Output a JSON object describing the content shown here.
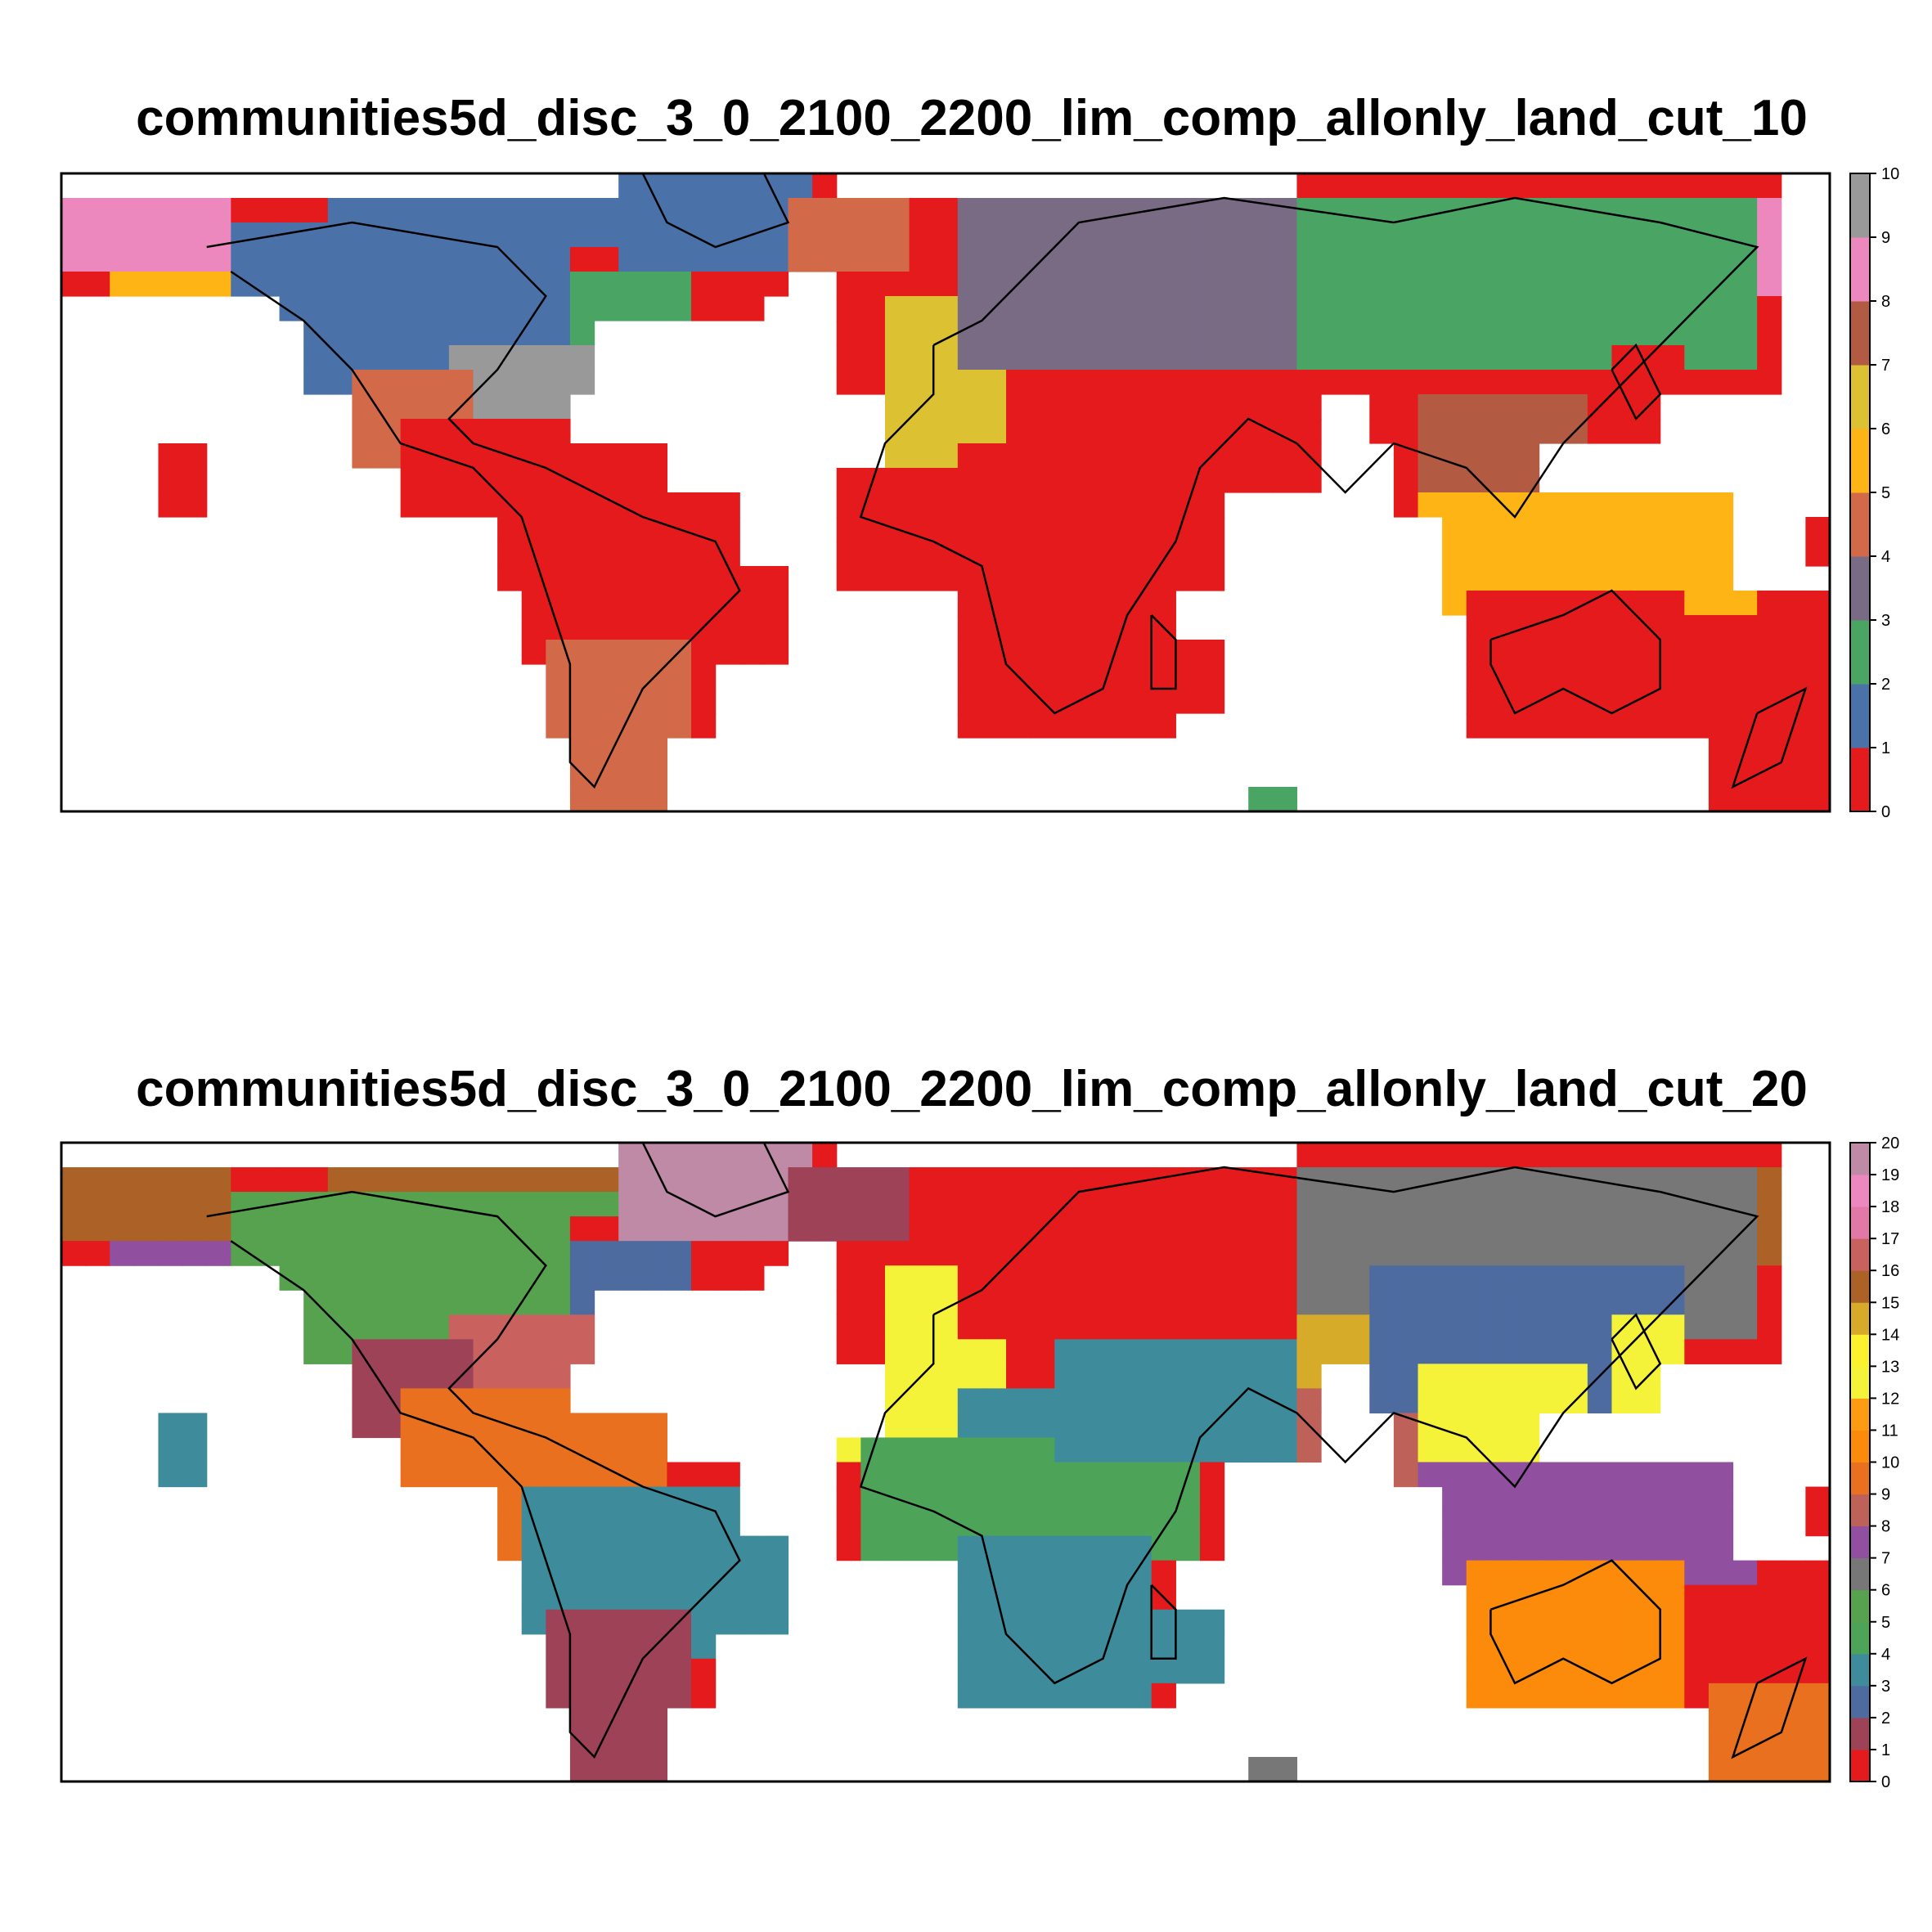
{
  "maps": [
    {
      "title": "communities5d_disc_3_0_2100_2200_lim_comp_allonly_land_cut_10",
      "legend_ticks": [
        "0",
        "1",
        "2",
        "3",
        "4",
        "5",
        "6",
        "7",
        "8",
        "9",
        "10"
      ],
      "palette": [
        "#e41a1c",
        "#4a72a8",
        "#4aa564",
        "#7a6b85",
        "#d26a4a",
        "#fdb414",
        "#dcc232",
        "#b25a42",
        "#ec88bd",
        "#999999"
      ],
      "regions": [
        {
          "name": "Canada",
          "v": 1
        },
        {
          "name": "Greenland",
          "v": 1
        },
        {
          "name": "Alaska",
          "v": 5
        },
        {
          "name": "Alaska west",
          "v": 8
        },
        {
          "name": "Chukotka",
          "v": 8
        },
        {
          "name": "US east",
          "v": 9
        },
        {
          "name": "US west",
          "v": 4
        },
        {
          "name": "Quebec",
          "v": 2
        },
        {
          "name": "Central America",
          "v": 0
        },
        {
          "name": "South America",
          "v": 0
        },
        {
          "name": "Patagonia",
          "v": 4
        },
        {
          "name": "Iceland",
          "v": 4
        },
        {
          "name": "Iberia and Maghreb",
          "v": 6
        },
        {
          "name": "Africa",
          "v": 0
        },
        {
          "name": "Madagascar",
          "v": 0
        },
        {
          "name": "Arabia and India",
          "v": 0
        },
        {
          "name": "Middle East",
          "v": 0
        },
        {
          "name": "Europe",
          "v": 3
        },
        {
          "name": "Siberia",
          "v": 2
        },
        {
          "name": "Indochina",
          "v": 7
        },
        {
          "name": "Japan",
          "v": 0
        },
        {
          "name": "Southeast Asia",
          "v": 5
        },
        {
          "name": "Australia",
          "v": 0
        },
        {
          "name": "New Zealand",
          "v": 0
        },
        {
          "name": "Hawaii",
          "v": 0
        },
        {
          "name": "Antarctic Peninsula",
          "v": 2
        }
      ]
    },
    {
      "title": "communities5d_disc_3_0_2100_2200_lim_comp_allonly_land_cut_20",
      "legend_ticks": [
        "0",
        "1",
        "2",
        "3",
        "4",
        "5",
        "6",
        "7",
        "8",
        "9",
        "10",
        "11",
        "12",
        "13",
        "14",
        "15",
        "16",
        "17",
        "18",
        "19",
        "20"
      ],
      "palette": [
        "#e41a1c",
        "#9e4258",
        "#4e6ba0",
        "#3e8c9b",
        "#4da459",
        "#57a24f",
        "#777777",
        "#904f9f",
        "#be6259",
        "#e8701e",
        "#fd8b0b",
        "#fd9b12",
        "#f5f23a",
        "#faf22f",
        "#d6ab2a",
        "#ac6227",
        "#c9625f",
        "#e178a5",
        "#ec88bd",
        "#bf8aa6"
      ],
      "regions": [
        {
          "name": "Canada",
          "v": 5
        },
        {
          "name": "Greenland",
          "v": 19
        },
        {
          "name": "Arctic islands",
          "v": 15
        },
        {
          "name": "Alaska",
          "v": 7
        },
        {
          "name": "Alaska west",
          "v": 15
        },
        {
          "name": "Chukotka",
          "v": 15
        },
        {
          "name": "US east",
          "v": 16
        },
        {
          "name": "US west",
          "v": 1
        },
        {
          "name": "Quebec",
          "v": 2
        },
        {
          "name": "Central America",
          "v": 9
        },
        {
          "name": "South America",
          "v": 3
        },
        {
          "name": "Patagonia",
          "v": 1
        },
        {
          "name": "Iceland",
          "v": 1
        },
        {
          "name": "Iberia and Maghreb",
          "v": 12
        },
        {
          "name": "Sahara",
          "v": 3
        },
        {
          "name": "Sahel",
          "v": 4
        },
        {
          "name": "Southern Africa",
          "v": 3
        },
        {
          "name": "Madagascar",
          "v": 3
        },
        {
          "name": "Middle East",
          "v": 3
        },
        {
          "name": "India",
          "v": 8
        },
        {
          "name": "Europe",
          "v": 0
        },
        {
          "name": "Siberia",
          "v": 6
        },
        {
          "name": "Central Asia",
          "v": 14
        },
        {
          "name": "China",
          "v": 2
        },
        {
          "name": "Japan",
          "v": 12
        },
        {
          "name": "Indochina",
          "v": 12
        },
        {
          "name": "Southeast Asia",
          "v": 7
        },
        {
          "name": "Australia",
          "v": 10
        },
        {
          "name": "New Zealand",
          "v": 9
        },
        {
          "name": "Hawaii",
          "v": 3
        },
        {
          "name": "Antarctic Peninsula",
          "v": 6
        }
      ]
    }
  ]
}
